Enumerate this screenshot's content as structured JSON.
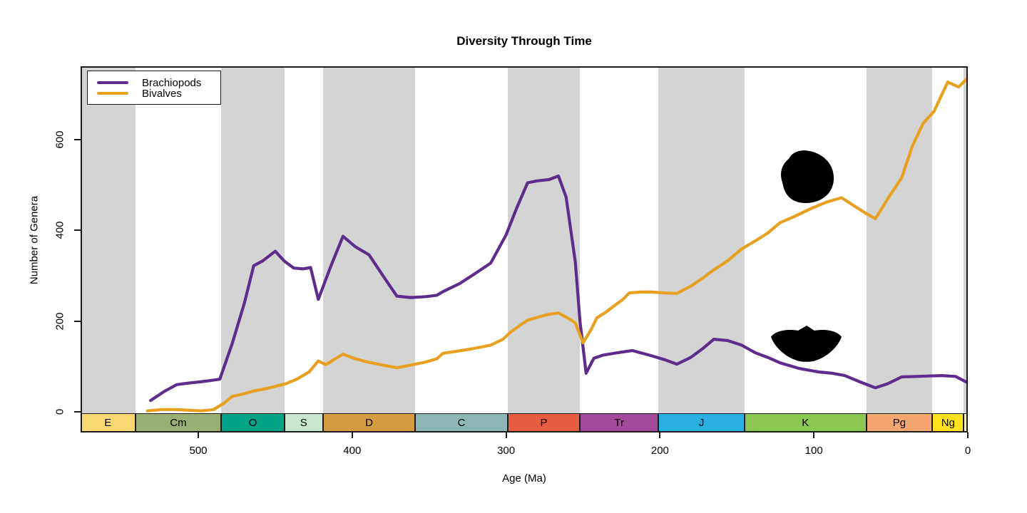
{
  "title": "Diversity Through Time",
  "axes": {
    "x_label": "Age (Ma)",
    "y_label": "Number of Genera",
    "x_ticks": [
      500,
      400,
      300,
      200,
      100,
      0
    ],
    "y_ticks": [
      0,
      200,
      400,
      600
    ]
  },
  "legend": {
    "items": [
      {
        "label": "Brachiopods",
        "color": "#5e2c8b"
      },
      {
        "label": "Bivalves",
        "color": "#e8a021"
      }
    ]
  },
  "timescale": {
    "stripe_color": "#d4d4d4",
    "periods": [
      {
        "label": "E",
        "start": 576.5,
        "end": 541,
        "color": "#fad873",
        "stripe": true
      },
      {
        "label": "Cm",
        "start": 541,
        "end": 485,
        "color": "#99af73",
        "stripe": false
      },
      {
        "label": "O",
        "start": 485,
        "end": 444,
        "color": "#00a286",
        "stripe": true
      },
      {
        "label": "S",
        "start": 444,
        "end": 419,
        "color": "#c9e7ce",
        "stripe": false
      },
      {
        "label": "D",
        "start": 419,
        "end": 359,
        "color": "#d49c40",
        "stripe": true
      },
      {
        "label": "C",
        "start": 359,
        "end": 299,
        "color": "#8eb6b4",
        "stripe": false
      },
      {
        "label": "P",
        "start": 299,
        "end": 252,
        "color": "#e85c41",
        "stripe": true
      },
      {
        "label": "Tr",
        "start": 252,
        "end": 201,
        "color": "#a2499b",
        "stripe": false
      },
      {
        "label": "J",
        "start": 201,
        "end": 145,
        "color": "#29b0e0",
        "stripe": true
      },
      {
        "label": "K",
        "start": 145,
        "end": 66,
        "color": "#8cc751",
        "stripe": false
      },
      {
        "label": "Pg",
        "start": 66,
        "end": 23,
        "color": "#f5a76f",
        "stripe": true
      },
      {
        "label": "Ng",
        "start": 23,
        "end": 2.6,
        "color": "#ffe11c",
        "stripe": false
      },
      {
        "label": "",
        "start": 2.6,
        "end": 0,
        "color": "#fdf3bc",
        "stripe": true
      }
    ]
  },
  "icons": [
    {
      "name": "bivalve-shell-silhouette",
      "age_ma": 105,
      "genera": 510,
      "color": "#000000"
    },
    {
      "name": "brachiopod-shell-silhouette",
      "age_ma": 105,
      "genera": 160,
      "color": "#000000"
    }
  ],
  "chart_data": {
    "type": "line",
    "title": "Diversity Through Time",
    "xlabel": "Age (Ma)",
    "ylabel": "Number of Genera",
    "x_axis_reversed": true,
    "xlim": [
      576.5,
      0
    ],
    "ylim": [
      0,
      760
    ],
    "grid": false,
    "legend_position": "top-left",
    "series": [
      {
        "name": "Brachiopods",
        "color": "#5e2c8b",
        "points": [
          [
            531,
            25
          ],
          [
            522,
            45
          ],
          [
            514,
            60
          ],
          [
            505,
            64
          ],
          [
            499,
            66
          ],
          [
            492,
            69
          ],
          [
            486,
            72
          ],
          [
            478,
            150
          ],
          [
            470,
            240
          ],
          [
            464,
            322
          ],
          [
            458,
            333
          ],
          [
            450,
            354
          ],
          [
            444,
            332
          ],
          [
            438,
            317
          ],
          [
            432,
            315
          ],
          [
            427,
            318
          ],
          [
            422,
            248
          ],
          [
            414,
            320
          ],
          [
            406,
            387
          ],
          [
            398,
            364
          ],
          [
            389,
            346
          ],
          [
            380,
            300
          ],
          [
            371,
            255
          ],
          [
            362,
            252
          ],
          [
            352,
            254
          ],
          [
            345,
            257
          ],
          [
            341,
            265
          ],
          [
            330,
            283
          ],
          [
            320,
            305
          ],
          [
            310,
            328
          ],
          [
            300,
            390
          ],
          [
            293,
            450
          ],
          [
            286,
            505
          ],
          [
            280,
            509
          ],
          [
            272,
            512
          ],
          [
            266,
            520
          ],
          [
            261,
            473
          ],
          [
            255,
            330
          ],
          [
            252,
            200
          ],
          [
            248,
            85
          ],
          [
            243,
            118
          ],
          [
            237,
            125
          ],
          [
            228,
            130
          ],
          [
            218,
            135
          ],
          [
            207,
            125
          ],
          [
            197,
            115
          ],
          [
            189,
            105
          ],
          [
            180,
            120
          ],
          [
            172,
            140
          ],
          [
            165,
            160
          ],
          [
            156,
            157
          ],
          [
            147,
            147
          ],
          [
            138,
            130
          ],
          [
            130,
            120
          ],
          [
            122,
            108
          ],
          [
            110,
            96
          ],
          [
            97,
            88
          ],
          [
            88,
            85
          ],
          [
            80,
            80
          ],
          [
            70,
            66
          ],
          [
            60,
            53
          ],
          [
            52,
            62
          ],
          [
            43,
            77
          ],
          [
            33,
            78
          ],
          [
            25,
            79
          ],
          [
            17,
            80
          ],
          [
            8,
            78
          ],
          [
            0,
            64
          ]
        ]
      },
      {
        "name": "Bivalves",
        "color": "#e8a021",
        "points": [
          [
            533,
            2
          ],
          [
            524,
            5
          ],
          [
            516,
            5
          ],
          [
            508,
            4
          ],
          [
            498,
            2
          ],
          [
            490,
            5
          ],
          [
            483,
            20
          ],
          [
            478,
            34
          ],
          [
            470,
            40
          ],
          [
            464,
            46
          ],
          [
            456,
            51
          ],
          [
            450,
            56
          ],
          [
            443,
            62
          ],
          [
            436,
            72
          ],
          [
            428,
            88
          ],
          [
            422,
            112
          ],
          [
            417,
            104
          ],
          [
            411,
            117
          ],
          [
            406,
            127
          ],
          [
            398,
            117
          ],
          [
            389,
            109
          ],
          [
            380,
            103
          ],
          [
            371,
            97
          ],
          [
            362,
            103
          ],
          [
            352,
            110
          ],
          [
            345,
            117
          ],
          [
            341,
            129
          ],
          [
            333,
            133
          ],
          [
            322,
            139
          ],
          [
            310,
            147
          ],
          [
            302,
            160
          ],
          [
            297,
            176
          ],
          [
            290,
            193
          ],
          [
            286,
            202
          ],
          [
            278,
            210
          ],
          [
            272,
            215
          ],
          [
            266,
            218
          ],
          [
            260,
            207
          ],
          [
            255,
            196
          ],
          [
            250,
            152
          ],
          [
            245,
            180
          ],
          [
            241,
            207
          ],
          [
            235,
            220
          ],
          [
            230,
            233
          ],
          [
            224,
            248
          ],
          [
            220,
            262
          ],
          [
            213,
            264
          ],
          [
            205,
            264
          ],
          [
            197,
            262
          ],
          [
            189,
            261
          ],
          [
            180,
            277
          ],
          [
            173,
            293
          ],
          [
            165,
            313
          ],
          [
            156,
            333
          ],
          [
            147,
            359
          ],
          [
            138,
            377
          ],
          [
            130,
            394
          ],
          [
            122,
            417
          ],
          [
            113,
            430
          ],
          [
            102,
            448
          ],
          [
            92,
            462
          ],
          [
            82,
            472
          ],
          [
            72,
            450
          ],
          [
            66,
            437
          ],
          [
            60,
            426
          ],
          [
            52,
            470
          ],
          [
            43,
            516
          ],
          [
            36,
            586
          ],
          [
            29,
            636
          ],
          [
            22,
            662
          ],
          [
            13,
            727
          ],
          [
            6,
            716
          ],
          [
            0,
            736
          ]
        ]
      }
    ]
  }
}
